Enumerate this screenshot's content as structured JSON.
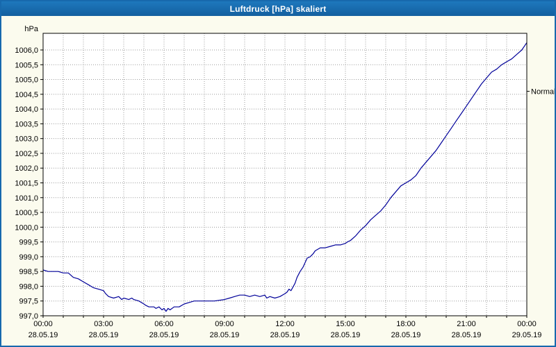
{
  "window": {
    "title": "Luftdruck [hPa] skaliert"
  },
  "colors": {
    "titlebar": "#1769ad",
    "window_background": "#fbfbee",
    "plot_background": "#ffffff",
    "grid": "#9b9b9b",
    "series_line": "#000099",
    "text": "#000000"
  },
  "chart_data": {
    "type": "line",
    "title": "Luftdruck [hPa] skaliert",
    "xlabel": "",
    "ylabel": "hPa",
    "ylim": [
      997.0,
      1006.5
    ],
    "y_tick_step": 0.5,
    "grid": "dotted, hourly vertical / 0.5 hPa horizontal",
    "legend_position": "none",
    "y_ticks": [
      "1006,0",
      "1005,5",
      "1005,0",
      "1004,5",
      "1004,0",
      "1003,5",
      "1003,0",
      "1002,5",
      "1002,0",
      "1001,5",
      "1001,0",
      "1000,5",
      "1000,0",
      "999,5",
      "999,0",
      "998,5",
      "998,0",
      "997,5",
      "997,0"
    ],
    "x_ticks": [
      {
        "hour": 0,
        "time": "00:00",
        "date": "28.05.19"
      },
      {
        "hour": 3,
        "time": "03:00",
        "date": "28.05.19"
      },
      {
        "hour": 6,
        "time": "06:00",
        "date": "28.05.19"
      },
      {
        "hour": 9,
        "time": "09:00",
        "date": "28.05.19"
      },
      {
        "hour": 12,
        "time": "12:00",
        "date": "28.05.19"
      },
      {
        "hour": 15,
        "time": "15:00",
        "date": "28.05.19"
      },
      {
        "hour": 18,
        "time": "18:00",
        "date": "28.05.19"
      },
      {
        "hour": 21,
        "time": "21:00",
        "date": "28.05.19"
      },
      {
        "hour": 24,
        "time": "00:00",
        "date": "29.05.19"
      }
    ],
    "normal_marker": {
      "label": "Normal",
      "value": 1004.6
    },
    "series": [
      {
        "name": "Luftdruck",
        "color": "#000099",
        "points": [
          [
            0,
            998.55
          ],
          [
            0.25,
            998.5
          ],
          [
            0.75,
            998.5
          ],
          [
            1,
            998.45
          ],
          [
            1.25,
            998.45
          ],
          [
            1.5,
            998.3
          ],
          [
            1.75,
            998.25
          ],
          [
            2,
            998.15
          ],
          [
            2.25,
            998.05
          ],
          [
            2.5,
            997.95
          ],
          [
            2.75,
            997.9
          ],
          [
            3,
            997.85
          ],
          [
            3.1,
            997.75
          ],
          [
            3.25,
            997.65
          ],
          [
            3.5,
            997.6
          ],
          [
            3.75,
            997.65
          ],
          [
            3.9,
            997.55
          ],
          [
            4,
            997.6
          ],
          [
            4.25,
            997.55
          ],
          [
            4.4,
            997.6
          ],
          [
            4.5,
            997.55
          ],
          [
            4.75,
            997.5
          ],
          [
            5,
            997.4
          ],
          [
            5.1,
            997.35
          ],
          [
            5.25,
            997.3
          ],
          [
            5.5,
            997.3
          ],
          [
            5.6,
            997.25
          ],
          [
            5.75,
            997.3
          ],
          [
            5.9,
            997.2
          ],
          [
            6,
            997.25
          ],
          [
            6.1,
            997.15
          ],
          [
            6.2,
            997.25
          ],
          [
            6.3,
            997.2
          ],
          [
            6.5,
            997.3
          ],
          [
            6.75,
            997.3
          ],
          [
            7,
            997.4
          ],
          [
            7.25,
            997.45
          ],
          [
            7.5,
            997.5
          ],
          [
            8,
            997.5
          ],
          [
            8.5,
            997.5
          ],
          [
            9,
            997.55
          ],
          [
            9.25,
            997.6
          ],
          [
            9.5,
            997.65
          ],
          [
            9.75,
            997.7
          ],
          [
            10,
            997.7
          ],
          [
            10.25,
            997.65
          ],
          [
            10.5,
            997.7
          ],
          [
            10.75,
            997.65
          ],
          [
            11,
            997.7
          ],
          [
            11.1,
            997.6
          ],
          [
            11.25,
            997.65
          ],
          [
            11.5,
            997.6
          ],
          [
            11.75,
            997.65
          ],
          [
            12,
            997.75
          ],
          [
            12.1,
            997.8
          ],
          [
            12.2,
            997.9
          ],
          [
            12.3,
            997.85
          ],
          [
            12.5,
            998.1
          ],
          [
            12.6,
            998.3
          ],
          [
            12.75,
            998.5
          ],
          [
            12.9,
            998.65
          ],
          [
            13,
            998.8
          ],
          [
            13.1,
            998.95
          ],
          [
            13.25,
            999.0
          ],
          [
            13.4,
            999.1
          ],
          [
            13.5,
            999.2
          ],
          [
            13.75,
            999.3
          ],
          [
            14,
            999.3
          ],
          [
            14.25,
            999.35
          ],
          [
            14.5,
            999.4
          ],
          [
            14.75,
            999.4
          ],
          [
            15,
            999.45
          ],
          [
            15.1,
            999.5
          ],
          [
            15.25,
            999.55
          ],
          [
            15.5,
            999.7
          ],
          [
            15.75,
            999.9
          ],
          [
            16,
            1000.05
          ],
          [
            16.25,
            1000.25
          ],
          [
            16.5,
            1000.4
          ],
          [
            16.75,
            1000.55
          ],
          [
            17,
            1000.75
          ],
          [
            17.25,
            1001.0
          ],
          [
            17.5,
            1001.2
          ],
          [
            17.75,
            1001.4
          ],
          [
            18,
            1001.5
          ],
          [
            18.25,
            1001.6
          ],
          [
            18.5,
            1001.75
          ],
          [
            18.75,
            1002.0
          ],
          [
            19,
            1002.2
          ],
          [
            19.25,
            1002.4
          ],
          [
            19.5,
            1002.6
          ],
          [
            19.75,
            1002.85
          ],
          [
            20,
            1003.1
          ],
          [
            20.25,
            1003.35
          ],
          [
            20.5,
            1003.6
          ],
          [
            20.75,
            1003.85
          ],
          [
            21,
            1004.1
          ],
          [
            21.25,
            1004.35
          ],
          [
            21.5,
            1004.6
          ],
          [
            21.75,
            1004.85
          ],
          [
            22,
            1005.05
          ],
          [
            22.25,
            1005.25
          ],
          [
            22.5,
            1005.35
          ],
          [
            22.75,
            1005.5
          ],
          [
            23,
            1005.6
          ],
          [
            23.25,
            1005.7
          ],
          [
            23.5,
            1005.85
          ],
          [
            23.75,
            1006.0
          ],
          [
            24,
            1006.25
          ]
        ]
      }
    ]
  }
}
